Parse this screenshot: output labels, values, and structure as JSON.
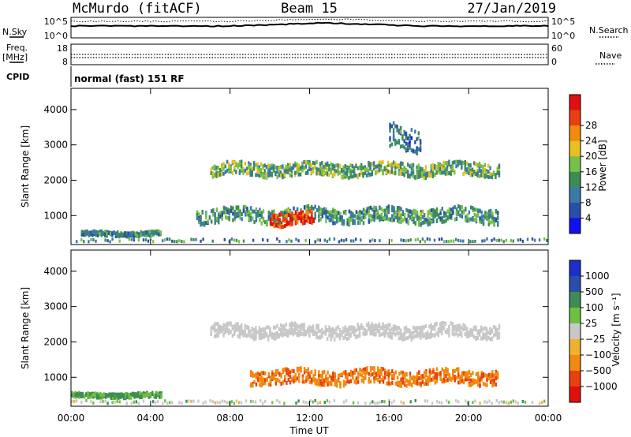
{
  "header": {
    "radar": "McMurdo (fitACF)",
    "beam": "Beam 15",
    "date": "27/Jan/2019"
  },
  "top_panels": {
    "nsky_label": "N.Sky",
    "nsky_ticks": [
      "10^5",
      "10^0"
    ],
    "nsearch_label": "N.Search",
    "freq_label_line1": "Freq.",
    "freq_label_line2": "[MHz]",
    "freq_ticks": [
      "18",
      "8"
    ],
    "nave_label": "Nave",
    "nave_ticks": [
      "60",
      "0"
    ],
    "cpid_label": "CPID",
    "cpid_value": "normal (fast) 151 RF"
  },
  "x_axis": {
    "label": "Time UT",
    "ticks": [
      "00:00",
      "04:00",
      "08:00",
      "12:00",
      "16:00",
      "20:00",
      "00:00"
    ]
  },
  "colors": {
    "power_scale": [
      "#1010f0",
      "#2a4fa8",
      "#3a7aa8",
      "#3d8c55",
      "#78c04a",
      "#e8c020",
      "#f08a10",
      "#e84010",
      "#e01010"
    ],
    "velocity_scale": [
      "#e01010",
      "#e84010",
      "#f08a10",
      "#f0b030",
      "#c8c8c8",
      "#70c040",
      "#3d8c55",
      "#2a4fa8",
      "#1a30c8"
    ],
    "ground_scatter": "#c8c8c8"
  },
  "chart_data": [
    {
      "type": "heatmap",
      "title": "Power",
      "xlabel": "Time UT",
      "ylabel": "Slant Range [km]",
      "xlim_hours": [
        0,
        24
      ],
      "ylim": [
        180,
        4600
      ],
      "yticks": [
        1000,
        2000,
        3000,
        4000
      ],
      "colorbar": {
        "label": "Power [dB]",
        "ticks": [
          4,
          8,
          12,
          16,
          20,
          24,
          28
        ],
        "range": [
          0,
          32
        ]
      },
      "features": [
        {
          "name": "near-range band",
          "t_start": 0.5,
          "t_end": 4.5,
          "range_center": 480,
          "range_halfwidth": 60,
          "value_db": 10
        },
        {
          "name": "lower band",
          "t_start": 6.3,
          "t_end": 21.5,
          "range_center": 1000,
          "range_halfwidth": 200,
          "value_db": 12
        },
        {
          "name": "power peak",
          "t_start": 10.0,
          "t_end": 12.2,
          "range_center": 900,
          "range_halfwidth": 180,
          "value_db": 28
        },
        {
          "name": "upper band",
          "t_start": 7.0,
          "t_end": 21.5,
          "range_center": 2300,
          "range_halfwidth": 180,
          "value_db": 14
        },
        {
          "name": "rising streak",
          "t_start": 16.0,
          "t_end": 17.6,
          "range_center": 3200,
          "range_halfwidth": 350,
          "value_db": 9
        }
      ]
    },
    {
      "type": "heatmap",
      "title": "Velocity",
      "xlabel": "Time UT",
      "ylabel": "Slant Range [km]",
      "xlim_hours": [
        0,
        24
      ],
      "ylim": [
        180,
        4600
      ],
      "yticks": [
        1000,
        2000,
        3000,
        4000
      ],
      "colorbar": {
        "label": "Velocity [m s⁻¹]",
        "ticks": [
          "1000",
          "500",
          "100",
          "25",
          "−25",
          "−100",
          "−500",
          "−1000"
        ]
      },
      "features": [
        {
          "name": "near-range band",
          "t_start": 0.0,
          "t_end": 4.5,
          "range_center": 480,
          "range_halfwidth": 60,
          "value_ms": 100
        },
        {
          "name": "orange lower band",
          "t_start": 9.0,
          "t_end": 21.5,
          "range_center": 1000,
          "range_halfwidth": 200,
          "value_ms": -400
        },
        {
          "name": "ground-scatter band",
          "t_start": 7.0,
          "t_end": 21.5,
          "range_center": 2300,
          "range_halfwidth": 180,
          "value_ms": 0
        }
      ]
    }
  ]
}
